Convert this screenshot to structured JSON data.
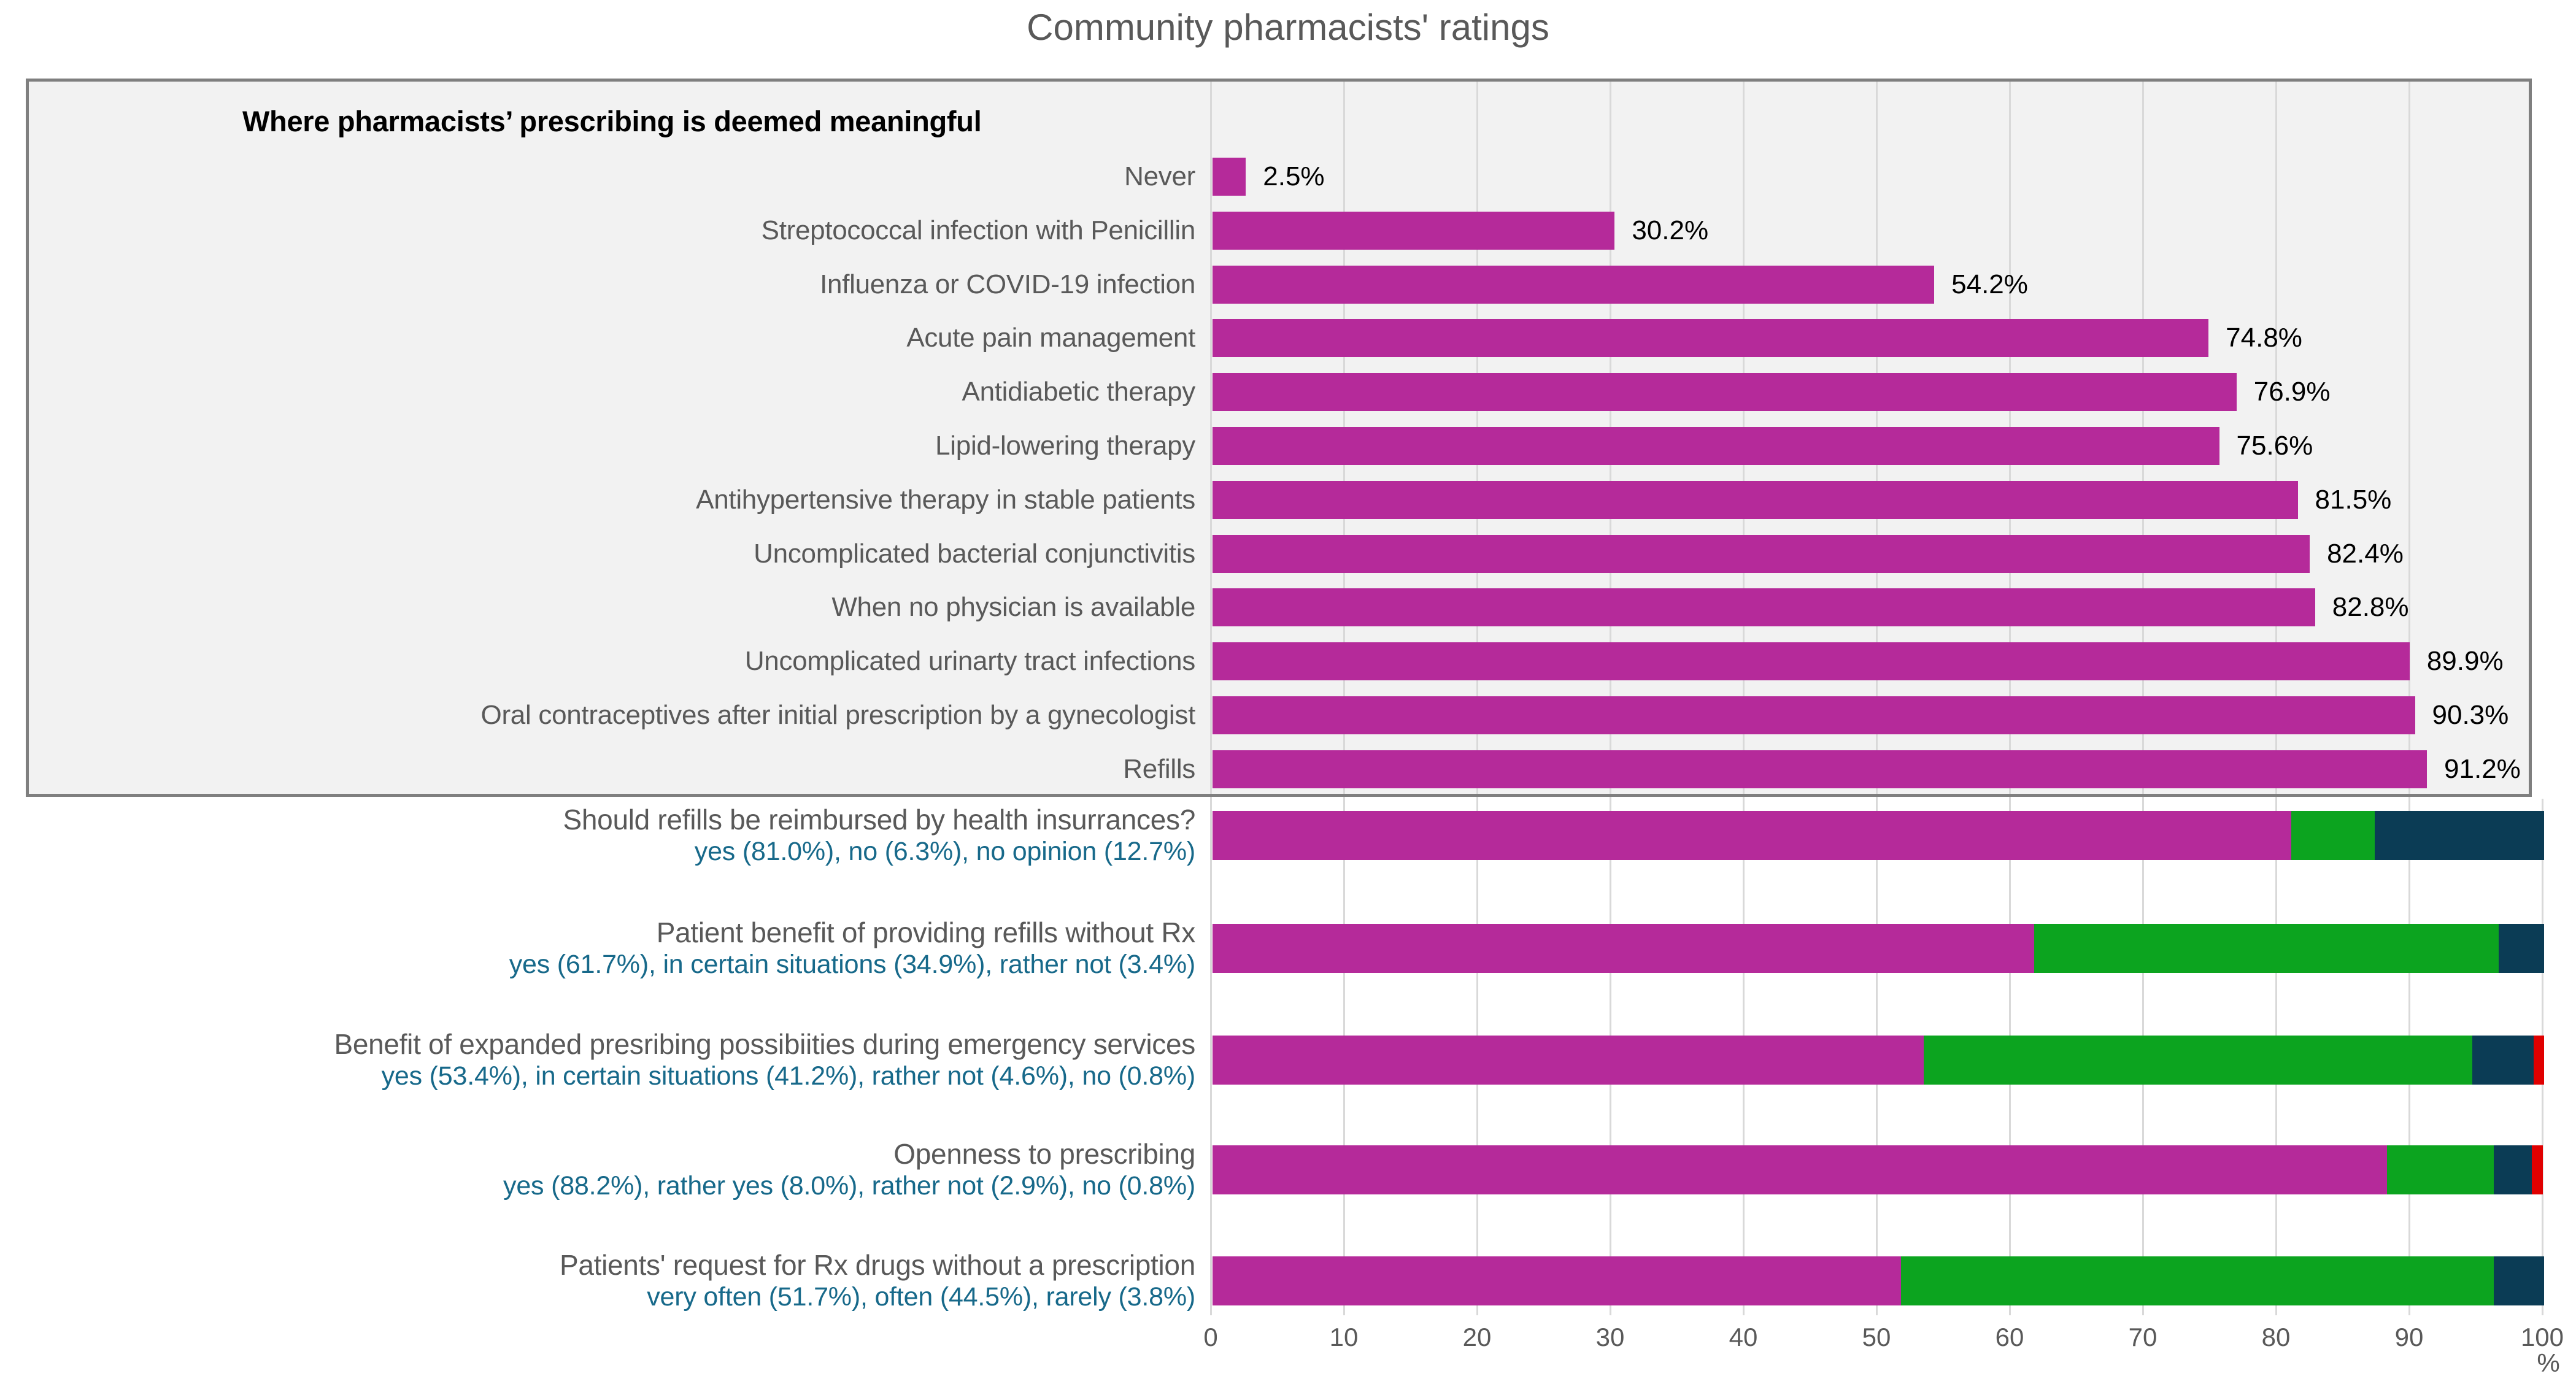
{
  "title": "Community pharmacists' ratings",
  "colors": {
    "bar_magenta": "#B52A9A",
    "seg_green": "#0CA41F",
    "seg_navy": "#0B3C55",
    "seg_red": "#E00000",
    "sublabel_teal": "#17698A",
    "label_gray": "#595959",
    "grid_gray": "#D9D9D9",
    "box_background": "#F2F2F2",
    "box_border": "#7F7F7F"
  },
  "chart_data": {
    "type": "bar",
    "orientation": "horizontal",
    "title": "Community pharmacists' ratings",
    "xlabel": "%",
    "x_axis_unit": "%",
    "xlim": [
      0,
      100
    ],
    "x_ticks": [
      0,
      10,
      20,
      30,
      40,
      50,
      60,
      70,
      80,
      90,
      100
    ],
    "grid": true,
    "sections": [
      {
        "name": "meaningful-prescribing",
        "header": "Where pharmacists’ prescribing is deemed meaningful",
        "bar_color_key": "bar_magenta",
        "items": [
          {
            "label": "Never",
            "value": 2.5,
            "value_label": "2.5%"
          },
          {
            "label": "Streptococcal infection with Penicillin",
            "value": 30.2,
            "value_label": "30.2%"
          },
          {
            "label": "Influenza or COVID-19 infection",
            "value": 54.2,
            "value_label": "54.2%"
          },
          {
            "label": "Acute pain management",
            "value": 74.8,
            "value_label": "74.8%"
          },
          {
            "label": "Antidiabetic therapy",
            "value": 76.9,
            "value_label": "76.9%"
          },
          {
            "label": "Lipid-lowering therapy",
            "value": 75.6,
            "value_label": "75.6%"
          },
          {
            "label": "Antihypertensive therapy in stable patients",
            "value": 81.5,
            "value_label": "81.5%"
          },
          {
            "label": "Uncomplicated bacterial conjunctivitis",
            "value": 82.4,
            "value_label": "82.4%"
          },
          {
            "label": "When no physician is available",
            "value": 82.8,
            "value_label": "82.8%"
          },
          {
            "label": "Uncomplicated urinarty tract infections",
            "value": 89.9,
            "value_label": "89.9%"
          },
          {
            "label": "Oral contraceptives after initial prescription by a gynecologist",
            "value": 90.3,
            "value_label": "90.3%"
          },
          {
            "label": "Refills",
            "value": 91.2,
            "value_label": "91.2%"
          }
        ]
      },
      {
        "name": "stacked-questions",
        "segment_color_keys": [
          "bar_magenta",
          "seg_green",
          "seg_navy",
          "seg_red"
        ],
        "items": [
          {
            "label": "Should refills be reimbursed by health insurrances?",
            "sublabel": "yes (81.0%), no (6.3%), no opinion (12.7%)",
            "segments": [
              {
                "name": "yes",
                "value": 81.0
              },
              {
                "name": "no",
                "value": 6.3
              },
              {
                "name": "no opinion",
                "value": 12.7
              }
            ]
          },
          {
            "label": "Patient benefit of providing refills without Rx",
            "sublabel": "yes (61.7%), in certain situations  (34.9%), rather not (3.4%)",
            "segments": [
              {
                "name": "yes",
                "value": 61.7
              },
              {
                "name": "in certain situations",
                "value": 34.9
              },
              {
                "name": "rather not",
                "value": 3.4
              }
            ]
          },
          {
            "label": "Benefit of expanded presribing possibiities during emergency services",
            "sublabel": "yes (53.4%), in certain situations (41.2%), rather not (4.6%), no (0.8%)",
            "segments": [
              {
                "name": "yes",
                "value": 53.4
              },
              {
                "name": "in certain situations",
                "value": 41.2
              },
              {
                "name": "rather not",
                "value": 4.6
              },
              {
                "name": "no",
                "value": 0.8
              }
            ]
          },
          {
            "label": "Openness to prescribing",
            "sublabel": "yes (88.2%), rather yes (8.0%), rather not (2.9%), no (0.8%)",
            "segments": [
              {
                "name": "yes",
                "value": 88.2
              },
              {
                "name": "rather yes",
                "value": 8.0
              },
              {
                "name": "rather not",
                "value": 2.9
              },
              {
                "name": "no",
                "value": 0.8
              }
            ]
          },
          {
            "label": "Patients' request for Rx drugs without a prescription",
            "sublabel": "very often (51.7%), often (44.5%), rarely (3.8%)",
            "segments": [
              {
                "name": "very often",
                "value": 51.7
              },
              {
                "name": "often",
                "value": 44.5
              },
              {
                "name": "rarely",
                "value": 3.8
              }
            ]
          }
        ]
      }
    ]
  }
}
